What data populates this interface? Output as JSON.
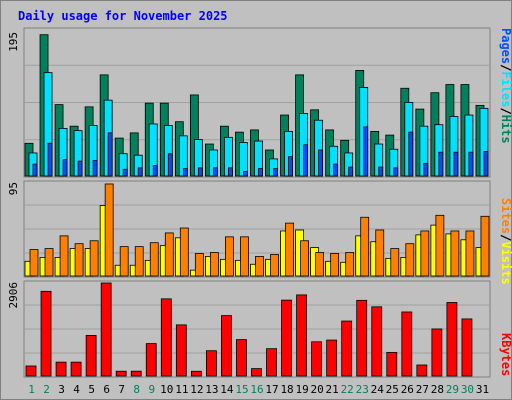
{
  "title": "Daily usage for November 2025",
  "colors": {
    "background": "#c0c0c0",
    "title": "#0000ff",
    "hits": "#00805c",
    "files": "#00e0ff",
    "pages": "#0050ff",
    "visits": "#ffff00",
    "sites": "#ff8000",
    "kbytes": "#ff0000",
    "weekend_day": "#00805c",
    "weekday": "#000000"
  },
  "chart_data": [
    {
      "type": "bar",
      "panel": "hits-files-pages",
      "ymax_label": "195",
      "ylim": [
        0,
        195
      ],
      "right_labels": [
        "Pages",
        "Files",
        "Hits"
      ],
      "categories": [
        "1",
        "2",
        "3",
        "4",
        "5",
        "6",
        "7",
        "8",
        "9",
        "10",
        "11",
        "12",
        "13",
        "14",
        "15",
        "16",
        "17",
        "18",
        "19",
        "20",
        "21",
        "22",
        "23",
        "24",
        "25",
        "26",
        "27",
        "28",
        "29",
        "30",
        "31"
      ],
      "weekend_days": [
        "1",
        "2",
        "8",
        "9",
        "15",
        "16",
        "22",
        "23",
        "29",
        "30"
      ],
      "series": [
        {
          "name": "Hits",
          "values": [
            44,
            190,
            96,
            67,
            93,
            136,
            51,
            58,
            98,
            98,
            73,
            109,
            43,
            67,
            59,
            62,
            35,
            82,
            136,
            89,
            62,
            48,
            142,
            60,
            55,
            118,
            90,
            112,
            123,
            123,
            95
          ]
        },
        {
          "name": "Files",
          "values": [
            31,
            139,
            64,
            61,
            68,
            102,
            30,
            28,
            70,
            68,
            54,
            49,
            35,
            52,
            45,
            47,
            23,
            60,
            84,
            75,
            40,
            31,
            119,
            43,
            36,
            99,
            67,
            69,
            80,
            82,
            91
          ]
        },
        {
          "name": "Pages",
          "values": [
            16,
            44,
            22,
            20,
            21,
            58,
            9,
            11,
            14,
            30,
            10,
            11,
            11,
            11,
            6,
            10,
            10,
            26,
            42,
            35,
            16,
            12,
            66,
            12,
            11,
            59,
            17,
            32,
            32,
            32,
            33
          ]
        }
      ]
    },
    {
      "type": "bar",
      "panel": "visits-sites",
      "ymax_label": "95",
      "ylim": [
        0,
        95
      ],
      "right_labels": [
        "Sites",
        "Visits"
      ],
      "categories": [
        "1",
        "2",
        "3",
        "4",
        "5",
        "6",
        "7",
        "8",
        "9",
        "10",
        "11",
        "12",
        "13",
        "14",
        "15",
        "16",
        "17",
        "18",
        "19",
        "20",
        "21",
        "22",
        "23",
        "24",
        "25",
        "26",
        "27",
        "28",
        "29",
        "30",
        "31"
      ],
      "series": [
        {
          "name": "Visits",
          "values": [
            15,
            19,
            19,
            28,
            28,
            72,
            11,
            11,
            16,
            31,
            39,
            6,
            20,
            17,
            16,
            12,
            17,
            46,
            47,
            29,
            15,
            14,
            41,
            35,
            18,
            19,
            42,
            52,
            43,
            37,
            29
          ]
        },
        {
          "name": "Sites",
          "values": [
            27,
            28,
            41,
            33,
            36,
            94,
            30,
            30,
            34,
            44,
            49,
            23,
            24,
            40,
            40,
            20,
            22,
            54,
            36,
            24,
            23,
            24,
            60,
            47,
            28,
            33,
            46,
            62,
            46,
            46,
            61
          ]
        }
      ]
    },
    {
      "type": "bar",
      "panel": "kbytes",
      "ymax_label": "2906",
      "ylim": [
        0,
        2906
      ],
      "right_labels": [
        "KBytes"
      ],
      "categories": [
        "1",
        "2",
        "3",
        "4",
        "5",
        "6",
        "7",
        "8",
        "9",
        "10",
        "11",
        "12",
        "13",
        "14",
        "15",
        "16",
        "17",
        "18",
        "19",
        "20",
        "21",
        "22",
        "23",
        "24",
        "25",
        "26",
        "27",
        "28",
        "29",
        "30",
        "31"
      ],
      "series": [
        {
          "name": "KBytes",
          "values": [
            313,
            2646,
            433,
            433,
            1269,
            2906,
            149,
            150,
            1013,
            2411,
            1598,
            148,
            790,
            1887,
            1137,
            231,
            854,
            2371,
            2534,
            1069,
            1123,
            1717,
            2365,
            2162,
            738,
            2001,
            344,
            1470,
            2297,
            1784,
            0
          ]
        }
      ]
    }
  ]
}
